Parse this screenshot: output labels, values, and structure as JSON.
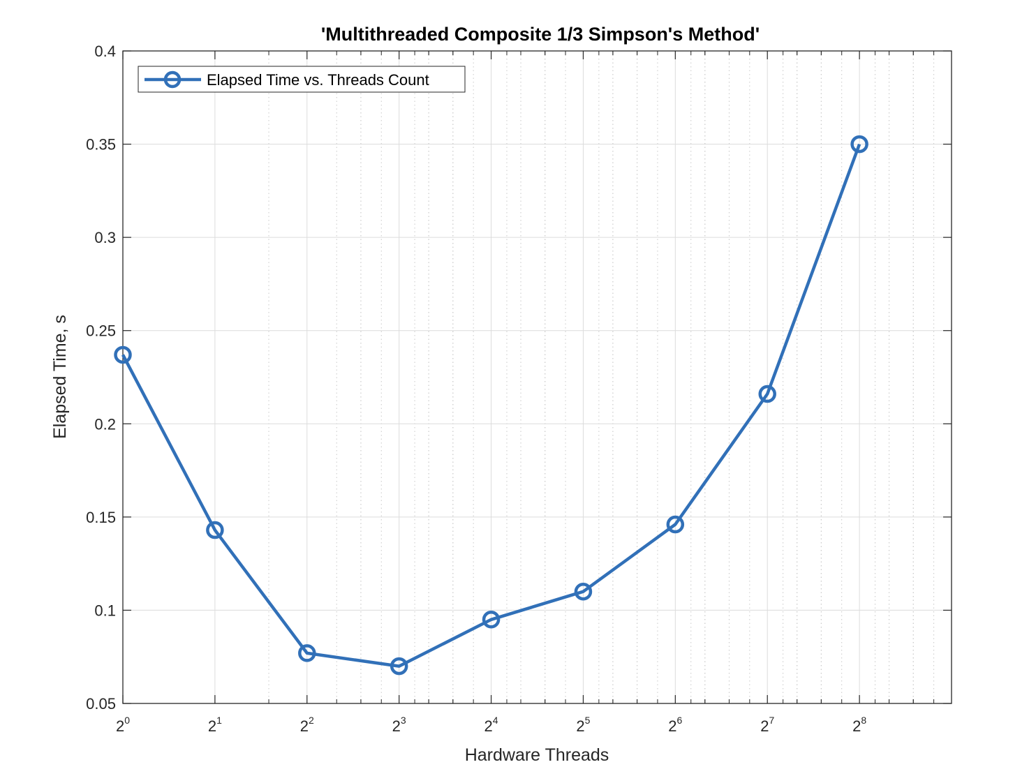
{
  "chart_data": {
    "type": "line",
    "title": "'Multithreaded Composite 1/3 Simpson's Method'",
    "xlabel": "Hardware Threads",
    "ylabel": "Elapsed Time, s",
    "x_scale": "log2",
    "xlim": [
      1,
      512
    ],
    "ylim": [
      0.05,
      0.4
    ],
    "x_ticks": [
      {
        "base": "2",
        "exp": "0",
        "value": 1
      },
      {
        "base": "2",
        "exp": "1",
        "value": 2
      },
      {
        "base": "2",
        "exp": "2",
        "value": 4
      },
      {
        "base": "2",
        "exp": "3",
        "value": 8
      },
      {
        "base": "2",
        "exp": "4",
        "value": 16
      },
      {
        "base": "2",
        "exp": "5",
        "value": 32
      },
      {
        "base": "2",
        "exp": "6",
        "value": 64
      },
      {
        "base": "2",
        "exp": "7",
        "value": 128
      },
      {
        "base": "2",
        "exp": "8",
        "value": 256
      }
    ],
    "y_ticks": [
      "0.05",
      "0.1",
      "0.15",
      "0.2",
      "0.25",
      "0.3",
      "0.35",
      "0.4"
    ],
    "grid": true,
    "legend_position": "top-left",
    "series": [
      {
        "name": "Elapsed Time vs. Threads Count",
        "color": "#3170b8",
        "x": [
          1,
          2,
          4,
          8,
          16,
          32,
          64,
          128,
          256
        ],
        "y": [
          0.237,
          0.143,
          0.077,
          0.07,
          0.095,
          0.11,
          0.146,
          0.216,
          0.35
        ]
      }
    ]
  }
}
